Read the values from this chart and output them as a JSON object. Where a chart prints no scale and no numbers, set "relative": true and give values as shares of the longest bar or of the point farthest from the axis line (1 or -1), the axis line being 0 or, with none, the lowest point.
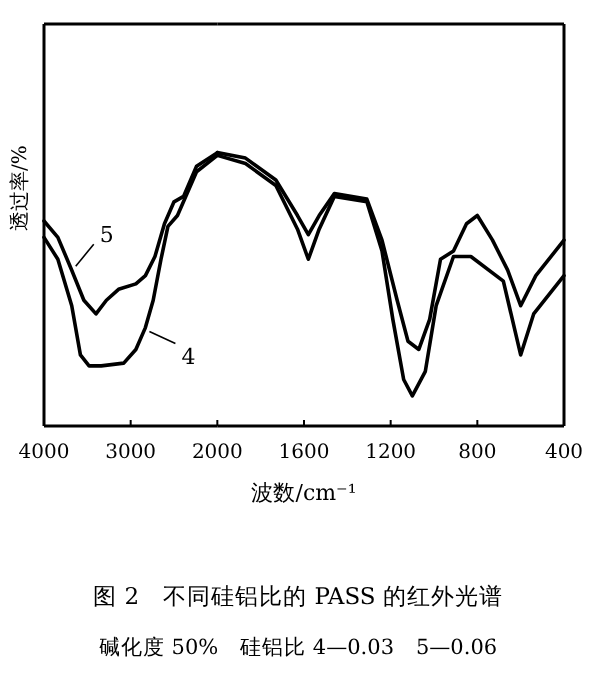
{
  "chart_data": [
    {
      "type": "line",
      "ylabel": "透过率/%",
      "relative": true,
      "xlim": [
        4000,
        2000
      ],
      "xticks": [
        4000,
        3000,
        2000
      ],
      "grid": false,
      "line_style": "solid",
      "series": [
        {
          "name": "5",
          "color": "#000000",
          "x": [
            4000,
            3840,
            3680,
            3540,
            3400,
            3280,
            3140,
            2940,
            2830,
            2720,
            2610,
            2500,
            2390,
            2240,
            2000
          ],
          "values": [
            0.75,
            0.69,
            0.57,
            0.46,
            0.41,
            0.46,
            0.5,
            0.52,
            0.55,
            0.62,
            0.74,
            0.82,
            0.84,
            0.95,
            1
          ]
        },
        {
          "name": "4",
          "color": "#000000",
          "x": [
            4000,
            3840,
            3680,
            3580,
            3480,
            3340,
            3080,
            2940,
            2830,
            2740,
            2650,
            2570,
            2460,
            2240,
            2000
          ],
          "values": [
            0.69,
            0.61,
            0.44,
            0.26,
            0.22,
            0.22,
            0.23,
            0.28,
            0.36,
            0.46,
            0.61,
            0.73,
            0.77,
            0.93,
            0.99
          ]
        }
      ]
    },
    {
      "type": "line",
      "title": "图 2　不同硅铝比的 PASS 的红外光谱",
      "subtitle": "碱化度 50%　硅铝比 4—0.03　5—0.06",
      "xlabel": "波数/cm⁻¹",
      "relative": true,
      "xlim": [
        2000,
        400
      ],
      "xticks": [
        1600,
        1200,
        800,
        400
      ],
      "grid": false,
      "line_style": "solid",
      "series": [
        {
          "color": "#000000",
          "x": [
            2000,
            1870,
            1730,
            1630,
            1580,
            1530,
            1460,
            1310,
            1240,
            1170,
            1120,
            1070,
            1020,
            970,
            910,
            850,
            800,
            730,
            660,
            600,
            530,
            400
          ],
          "values": [
            1,
            0.98,
            0.9,
            0.77,
            0.7,
            0.77,
            0.85,
            0.83,
            0.68,
            0.46,
            0.31,
            0.28,
            0.39,
            0.61,
            0.64,
            0.74,
            0.77,
            0.68,
            0.57,
            0.44,
            0.55,
            0.68
          ]
        },
        {
          "color": "#000000",
          "x": [
            2000,
            1870,
            1730,
            1630,
            1580,
            1530,
            1460,
            1310,
            1240,
            1190,
            1140,
            1100,
            1040,
            990,
            910,
            830,
            680,
            600,
            540,
            400
          ],
          "values": [
            0.99,
            0.96,
            0.88,
            0.72,
            0.61,
            0.72,
            0.84,
            0.82,
            0.64,
            0.39,
            0.17,
            0.11,
            0.2,
            0.44,
            0.62,
            0.62,
            0.53,
            0.26,
            0.41,
            0.55
          ]
        }
      ]
    }
  ]
}
